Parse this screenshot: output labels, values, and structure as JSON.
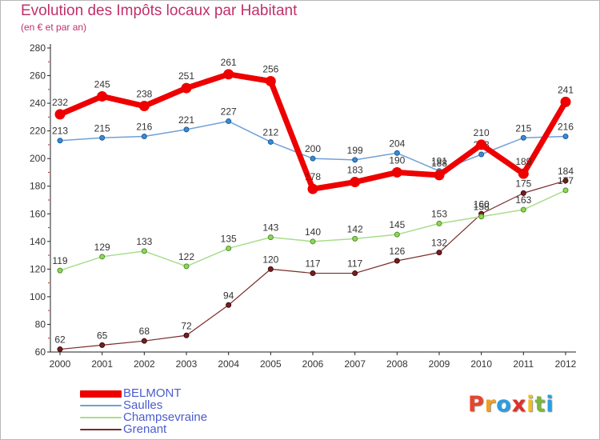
{
  "header": {
    "title": "Evolution des Impôts locaux par Habitant",
    "subtitle": "(en € et par an)"
  },
  "logo": {
    "text": "Proxiti",
    "letters": [
      {
        "ch": "P",
        "color": "#e8442a"
      },
      {
        "ch": "r",
        "color": "#f0a020"
      },
      {
        "ch": "o",
        "color": "#2a9de0"
      },
      {
        "ch": "x",
        "color": "#e0302a"
      },
      {
        "ch": "i",
        "color": "#f0c020"
      },
      {
        "ch": "t",
        "color": "#7ab83a"
      },
      {
        "ch": "i",
        "color": "#2a9de0"
      }
    ]
  },
  "chart_data": {
    "type": "line",
    "title": "Evolution des Impôts locaux par Habitant",
    "subtitle": "(en € et par an)",
    "xlabel": "",
    "ylabel": "",
    "ylim": [
      60,
      280
    ],
    "yticks": [
      60,
      80,
      100,
      120,
      140,
      160,
      180,
      200,
      220,
      240,
      260,
      280
    ],
    "grid": false,
    "legend_position": "bottom-left",
    "x": [
      "2000",
      "2001",
      "2002",
      "2003",
      "2004",
      "2005",
      "2006",
      "2007",
      "2008",
      "2009",
      "2010",
      "2011",
      "2012"
    ],
    "series": [
      {
        "name": "BELMONT",
        "color": "#ee0000",
        "width": 7,
        "marker": 6,
        "markerFill": "#ee0000",
        "markerStroke": "#ee0000",
        "values": [
          232,
          245,
          238,
          251,
          261,
          256,
          178,
          183,
          190,
          188,
          210,
          189,
          241
        ],
        "labels": [
          "232",
          "245",
          "238",
          "251",
          "261",
          "256",
          "178",
          "183",
          "190",
          "188",
          "210",
          "189",
          "241"
        ]
      },
      {
        "name": "Saulles",
        "color": "#6fa1d6",
        "width": 1.5,
        "marker": 3,
        "markerFill": "#3a8ad6",
        "markerStroke": "#1d5c99",
        "values": [
          213,
          215,
          216,
          221,
          227,
          212,
          200,
          199,
          204,
          191,
          203,
          215,
          216
        ],
        "labels": [
          "213",
          "215",
          "216",
          "221",
          "227",
          "212",
          "200",
          "199",
          "204",
          "191",
          "203",
          "215",
          "216"
        ]
      },
      {
        "name": "Champsevraine",
        "color": "#a9dd8a",
        "width": 1.5,
        "marker": 3,
        "markerFill": "#8ed858",
        "markerStroke": "#4f8f2a",
        "values": [
          119,
          129,
          133,
          122,
          135,
          143,
          140,
          142,
          145,
          153,
          158,
          163,
          177
        ],
        "labels": [
          "119",
          "129",
          "133",
          "122",
          "135",
          "143",
          "140",
          "142",
          "145",
          "153",
          "158",
          "163",
          "177"
        ]
      },
      {
        "name": "Grenant",
        "color": "#7a2b2b",
        "width": 1.2,
        "marker": 3,
        "markerFill": "#7a1e1e",
        "markerStroke": "#3a0a0a",
        "values": [
          62,
          65,
          68,
          72,
          94,
          120,
          117,
          117,
          126,
          132,
          160,
          175,
          184
        ],
        "labels": [
          "62",
          "65",
          "68",
          "72",
          "94",
          "120",
          "117",
          "117",
          "126",
          "132",
          "160",
          "175",
          "184"
        ]
      }
    ]
  }
}
